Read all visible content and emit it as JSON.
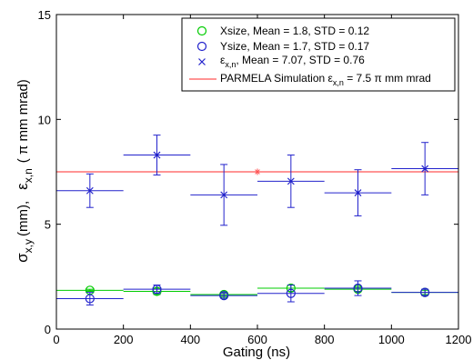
{
  "chart_data": {
    "type": "scatter",
    "title": "",
    "xlabel": "Gating (ns)",
    "ylabel_parts": {
      "sigma": "σ",
      "sigma_sub": "x,y",
      "sigma_unit": "(mm),",
      "eps": "ε",
      "eps_sub": "x,n",
      "eps_unit": "( π mm mrad)"
    },
    "xlim": [
      0,
      1200
    ],
    "ylim": [
      0,
      15
    ],
    "xticks": [
      0,
      200,
      400,
      600,
      800,
      1000,
      1200
    ],
    "yticks": [
      0,
      5,
      10,
      15
    ],
    "x_bin_width": 200,
    "grid": false,
    "legend_position": "top-right",
    "series": [
      {
        "name": "Xsize, Mean = 1.8, STD = 0.12",
        "marker": "circle",
        "color": "#00cc00",
        "x": [
          100,
          300,
          500,
          700,
          900,
          1100
        ],
        "y": [
          1.85,
          1.8,
          1.65,
          1.95,
          1.9,
          1.75
        ],
        "yerr": [
          0.05,
          0.15,
          0.1,
          0.15,
          0.1,
          0.1
        ]
      },
      {
        "name": "Ysize, Mean = 1.7, STD = 0.17",
        "marker": "circle",
        "color": "#2222cc",
        "x": [
          100,
          300,
          500,
          700,
          900,
          1100
        ],
        "y": [
          1.45,
          1.9,
          1.6,
          1.7,
          1.95,
          1.75
        ],
        "yerr": [
          0.3,
          0.2,
          0.12,
          0.4,
          0.35,
          0.15
        ]
      },
      {
        "name_parts": {
          "main": "ε",
          "sub": "x,n",
          "rest": ", Mean = 7.07, STD = 0.76"
        },
        "marker": "x",
        "color": "#2222cc",
        "x": [
          100,
          300,
          500,
          700,
          900,
          1100
        ],
        "y": [
          6.6,
          8.3,
          6.4,
          7.05,
          6.5,
          7.65
        ],
        "yerr": [
          0.8,
          0.95,
          1.45,
          1.25,
          1.1,
          1.25
        ]
      },
      {
        "name_parts": {
          "main": "PARMELA Simulation ε",
          "sub": "x,n",
          "rest": " = 7.5 π mm mrad"
        },
        "marker": "line",
        "color": "#ff5555",
        "y_const": 7.5,
        "star_point": [
          600,
          7.5
        ]
      }
    ]
  }
}
